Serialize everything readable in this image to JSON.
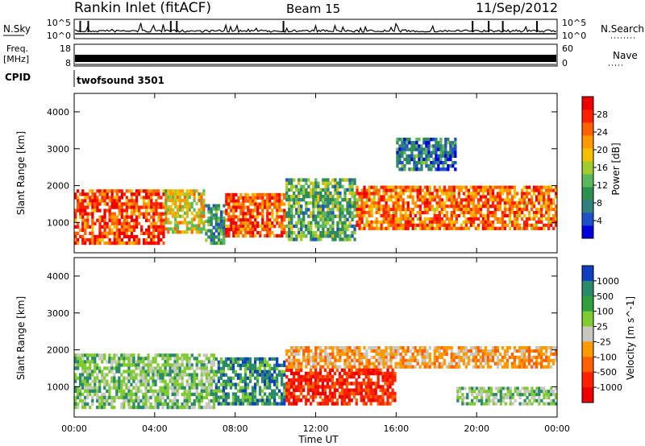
{
  "header": {
    "title": "Rankin Inlet (fitACF)",
    "beam": "Beam 15",
    "date": "11/Sep/2012"
  },
  "nsky_panel": {
    "left_label": "N.Sky",
    "right_label": "N.Search",
    "left_ticks": [
      "10^5",
      "10^0"
    ],
    "right_ticks": [
      "10^5",
      "10^0"
    ]
  },
  "freq_panel": {
    "left_label_1": "Freq.",
    "left_label_2": "[MHz]",
    "right_label": "Nave",
    "left_ticks": [
      "18",
      "8"
    ],
    "right_ticks": [
      "60",
      "0"
    ]
  },
  "cpid_panel": {
    "label": "CPID",
    "program": "twofsound 3501"
  },
  "chart_data": [
    {
      "type": "heatmap",
      "panel": "power",
      "ylabel": "Slant Range [km]",
      "ylim": [
        180,
        4500
      ],
      "yticks": [
        1000,
        2000,
        3000,
        4000
      ],
      "xlim": [
        0,
        24
      ],
      "colorbar": {
        "title": "Power [dB]",
        "range": [
          0,
          32
        ],
        "tick_labels": [
          "4",
          "8",
          "12",
          "16",
          "20",
          "24",
          "28"
        ],
        "colors": [
          "#0000dd",
          "#2050c8",
          "#308080",
          "#2f8f4f",
          "#5cb85c",
          "#a0cc30",
          "#f5c000",
          "#ff9900",
          "#ff6000",
          "#ff2000",
          "#ee0000"
        ]
      },
      "regions": [
        {
          "t": [
            0,
            4.5
          ],
          "r": [
            400,
            1900
          ],
          "value": 26
        },
        {
          "t": [
            4.5,
            6.5
          ],
          "r": [
            700,
            1900
          ],
          "value": 18
        },
        {
          "t": [
            6.5,
            7.5
          ],
          "r": [
            400,
            1500
          ],
          "value": 10
        },
        {
          "t": [
            7.5,
            10.5
          ],
          "r": [
            600,
            1800
          ],
          "value": 26
        },
        {
          "t": [
            10.5,
            14
          ],
          "r": [
            500,
            2200
          ],
          "value": 12
        },
        {
          "t": [
            14,
            24
          ],
          "r": [
            800,
            2000
          ],
          "value": 24
        },
        {
          "t": [
            16,
            19
          ],
          "r": [
            2400,
            3300
          ],
          "value": 8
        }
      ]
    },
    {
      "type": "heatmap",
      "panel": "velocity",
      "ylabel": "Slant Range [km]",
      "xlabel": "Time UT",
      "ylim": [
        180,
        4500
      ],
      "yticks": [
        1000,
        2000,
        3000,
        4000
      ],
      "xlim": [
        0,
        24
      ],
      "xticks": [
        "00:00",
        "04:00",
        "08:00",
        "12:00",
        "16:00",
        "20:00",
        "00:00"
      ],
      "colorbar": {
        "title": "Velocity [m s^-1]",
        "tick_labels": [
          "1000",
          "500",
          "100",
          "25",
          "-25",
          "-100",
          "-500",
          "-1000"
        ],
        "colors": [
          "#1040c0",
          "#2a8a6a",
          "#30a040",
          "#80cc30",
          "#c8c8c0",
          "#ff9900",
          "#ff6000",
          "#ff2000",
          "#ee0000"
        ]
      },
      "regions": [
        {
          "t": [
            0,
            7
          ],
          "r": [
            400,
            1900
          ],
          "value": 100
        },
        {
          "t": [
            7,
            10.5
          ],
          "r": [
            500,
            1800
          ],
          "value": 500
        },
        {
          "t": [
            10.5,
            16
          ],
          "r": [
            500,
            1500
          ],
          "value": -300
        },
        {
          "t": [
            10.5,
            24
          ],
          "r": [
            1500,
            2100
          ],
          "value": 0
        },
        {
          "t": [
            19,
            24
          ],
          "r": [
            500,
            1000
          ],
          "value": 150
        }
      ]
    }
  ]
}
